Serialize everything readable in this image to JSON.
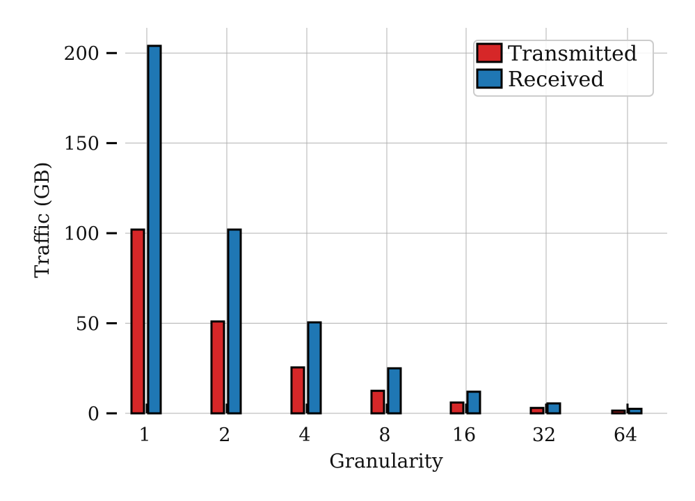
{
  "chart_data": {
    "type": "bar",
    "title": "",
    "xlabel": "Granularity",
    "ylabel": "Traffic (GB)",
    "categories": [
      "1",
      "2",
      "4",
      "8",
      "16",
      "32",
      "64"
    ],
    "series": [
      {
        "name": "Transmitted",
        "color": "#d62728",
        "values": [
          102,
          51,
          25.5,
          12.5,
          6,
          3,
          1.5
        ]
      },
      {
        "name": "Received",
        "color": "#1f77b4",
        "values": [
          204,
          102,
          50.5,
          25,
          12,
          5.5,
          2.5
        ]
      }
    ],
    "ylim": [
      0,
      214
    ],
    "yticks": [
      0,
      50,
      100,
      150,
      200
    ],
    "grid": true,
    "legend": {
      "position": "top-right"
    }
  }
}
